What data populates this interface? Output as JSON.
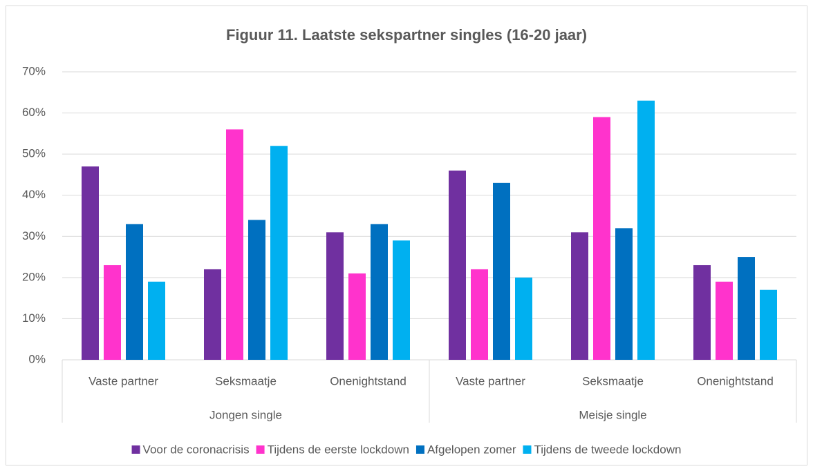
{
  "chart_data": {
    "type": "bar",
    "title": "Figuur 11. Laatste sekspartner singles (16-20 jaar)",
    "categories": [
      "Vaste partner",
      "Seksmaatje",
      "Onenightstand",
      "Vaste partner",
      "Seksmaatje",
      "Onenightstand"
    ],
    "groups": [
      "Jongen single",
      "Meisje single"
    ],
    "series": [
      {
        "name": "Voor de coronacrisis",
        "color": "#7030a0",
        "values": [
          47,
          22,
          31,
          46,
          31,
          23
        ]
      },
      {
        "name": "Tijdens de eerste lockdown",
        "color": "#ff33cc",
        "values": [
          23,
          56,
          21,
          22,
          59,
          19
        ]
      },
      {
        "name": "Afgelopen zomer",
        "color": "#0070c0",
        "values": [
          33,
          34,
          33,
          43,
          32,
          25
        ]
      },
      {
        "name": "Tijdens de tweede lockdown",
        "color": "#00b0f0",
        "values": [
          19,
          52,
          29,
          20,
          63,
          17
        ]
      }
    ],
    "ylim": [
      0,
      70
    ],
    "yticks": [
      {
        "value": 0,
        "label": "0%"
      },
      {
        "value": 10,
        "label": "10%"
      },
      {
        "value": 20,
        "label": "20%"
      },
      {
        "value": 30,
        "label": "30%"
      },
      {
        "value": 40,
        "label": "40%"
      },
      {
        "value": 50,
        "label": "50%"
      },
      {
        "value": 60,
        "label": "60%"
      },
      {
        "value": 70,
        "label": "70%"
      }
    ],
    "grid": true,
    "legend": "bottom"
  }
}
